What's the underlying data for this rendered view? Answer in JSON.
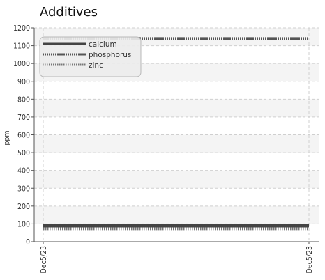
{
  "chart_data": {
    "type": "line",
    "title": "Additives",
    "xlabel": "",
    "ylabel": "ppm",
    "ylim": [
      0,
      1200
    ],
    "y_ticks": [
      0,
      100,
      200,
      300,
      400,
      500,
      600,
      700,
      800,
      900,
      1000,
      1100,
      1200
    ],
    "x_ticks": [
      "Dec5/23",
      "Dec5/23"
    ],
    "grid": true,
    "legend_position": "top-left",
    "series": [
      {
        "name": "calcium",
        "values": [
          90,
          90
        ],
        "color": "#444444",
        "style": "solid"
      },
      {
        "name": "phosphorus",
        "values": [
          1140,
          1140
        ],
        "color": "#555555",
        "style": "dotted-thick"
      },
      {
        "name": "zinc",
        "values": [
          73,
          73
        ],
        "color": "#777777",
        "style": "dotted"
      }
    ]
  }
}
